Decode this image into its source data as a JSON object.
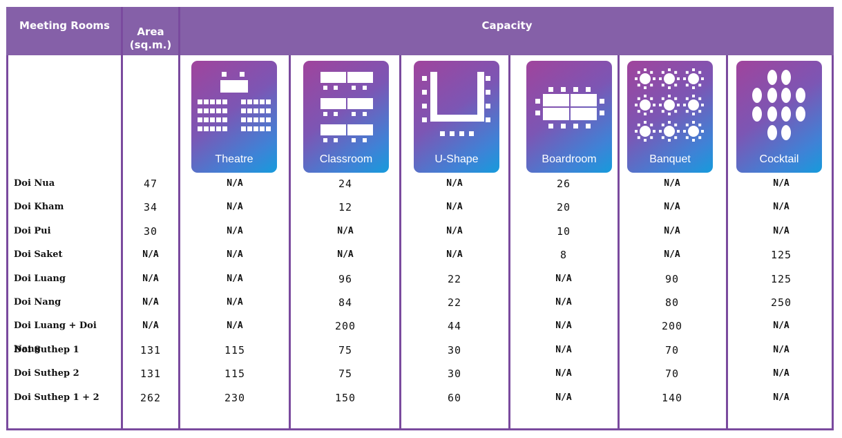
{
  "headers": {
    "rooms": "Meeting  Rooms",
    "area_line1": "Area",
    "area_line2": "(sq.m.)",
    "capacity": "Capacity"
  },
  "layouts": [
    {
      "label": "Theatre",
      "icon": "theatre-icon"
    },
    {
      "label": "Classroom",
      "icon": "classroom-icon"
    },
    {
      "label": "U-Shape",
      "icon": "u-shape-icon"
    },
    {
      "label": "Boardroom",
      "icon": "boardroom-icon"
    },
    {
      "label": "Banquet",
      "icon": "banquet-icon"
    },
    {
      "label": "Cocktail",
      "icon": "cocktail-icon"
    }
  ],
  "rows": [
    {
      "room": "Doi  Nua",
      "area": "47",
      "values": [
        "N/A",
        "24",
        "N/A",
        "26",
        "N/A",
        "N/A"
      ]
    },
    {
      "room": "Doi  Kham",
      "area": "34",
      "values": [
        "N/A",
        "12",
        "N/A",
        "20",
        "N/A",
        "N/A"
      ]
    },
    {
      "room": "Doi  Pui",
      "area": "30",
      "values": [
        "N/A",
        "N/A",
        "N/A",
        "10",
        "N/A",
        "N/A"
      ]
    },
    {
      "room": "Doi  Saket",
      "area": "N/A",
      "values": [
        "N/A",
        "N/A",
        "N/A",
        "8",
        "N/A",
        "125"
      ]
    },
    {
      "room": "Doi  Luang",
      "area": "N/A",
      "values": [
        "N/A",
        "96",
        "22",
        "N/A",
        "90",
        "125"
      ]
    },
    {
      "room": "Doi  Nang",
      "area": "N/A",
      "values": [
        "N/A",
        "84",
        "22",
        "N/A",
        "80",
        "250"
      ]
    },
    {
      "room": "Doi  Luang  +  Doi  Nang",
      "area": "N/A",
      "values": [
        "N/A",
        "200",
        "44",
        "N/A",
        "200",
        "N/A"
      ]
    },
    {
      "room": "Doi  Suthep  1",
      "area": "131",
      "values": [
        "115",
        "75",
        "30",
        "N/A",
        "70",
        "N/A"
      ]
    },
    {
      "room": "Doi  Suthep  2",
      "area": "131",
      "values": [
        "115",
        "75",
        "30",
        "N/A",
        "70",
        "N/A"
      ]
    },
    {
      "room": "Doi  Suthep  1  +  2",
      "area": "262",
      "values": [
        "230",
        "150",
        "60",
        "N/A",
        "140",
        "N/A"
      ]
    }
  ],
  "colors": {
    "header": "#8560a8",
    "border": "#7a4a9e",
    "icon_gradient_start": "#a0449c",
    "icon_gradient_end": "#169bdc"
  }
}
